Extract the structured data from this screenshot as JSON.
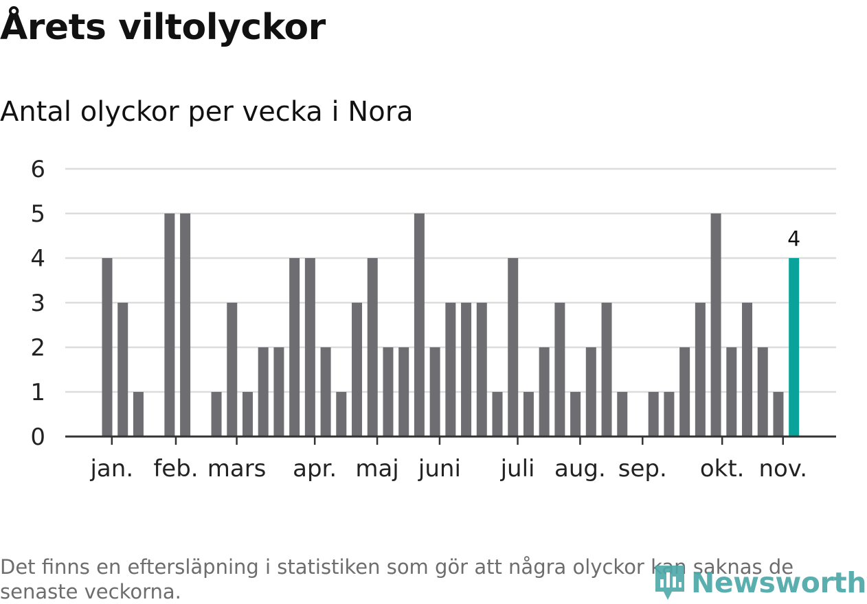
{
  "title": "Årets viltolyckor",
  "subtitle": "Antal olyckor per vecka i Nora",
  "footnote": "Det finns en eftersläpning i statistiken som gör att några olyckor kan saknas de senaste veckorna.",
  "brand": {
    "name": "Newsworthy",
    "color": "#4ea8a8"
  },
  "chart_data": {
    "type": "bar",
    "title": "Antal olyckor per vecka i Nora",
    "xlabel": "",
    "ylabel": "",
    "ylim": [
      0,
      6
    ],
    "yticks": [
      "0",
      "1",
      "2",
      "3",
      "4",
      "5",
      "6"
    ],
    "grid": true,
    "legend": "none",
    "bar_color": "#6e6d72",
    "highlight_color": "#0aa39b",
    "highlight_label": "4",
    "values": [
      4,
      3,
      1,
      0,
      5,
      5,
      0,
      1,
      3,
      1,
      2,
      2,
      4,
      4,
      2,
      1,
      3,
      4,
      2,
      2,
      5,
      2,
      3,
      3,
      3,
      1,
      4,
      1,
      2,
      3,
      1,
      2,
      3,
      1,
      0,
      1,
      1,
      2,
      3,
      5,
      2,
      3,
      2,
      1,
      4
    ],
    "month_labels": [
      {
        "label": "jan.",
        "at_week": 0.3
      },
      {
        "label": "feb.",
        "at_week": 4.4
      },
      {
        "label": "mars",
        "at_week": 8.3
      },
      {
        "label": "apr.",
        "at_week": 13.3
      },
      {
        "label": "maj",
        "at_week": 17.3
      },
      {
        "label": "juni",
        "at_week": 21.3
      },
      {
        "label": "juli",
        "at_week": 26.3
      },
      {
        "label": "aug.",
        "at_week": 30.3
      },
      {
        "label": "sep.",
        "at_week": 34.3
      },
      {
        "label": "okt.",
        "at_week": 39.4
      },
      {
        "label": "nov.",
        "at_week": 43.3
      }
    ]
  }
}
